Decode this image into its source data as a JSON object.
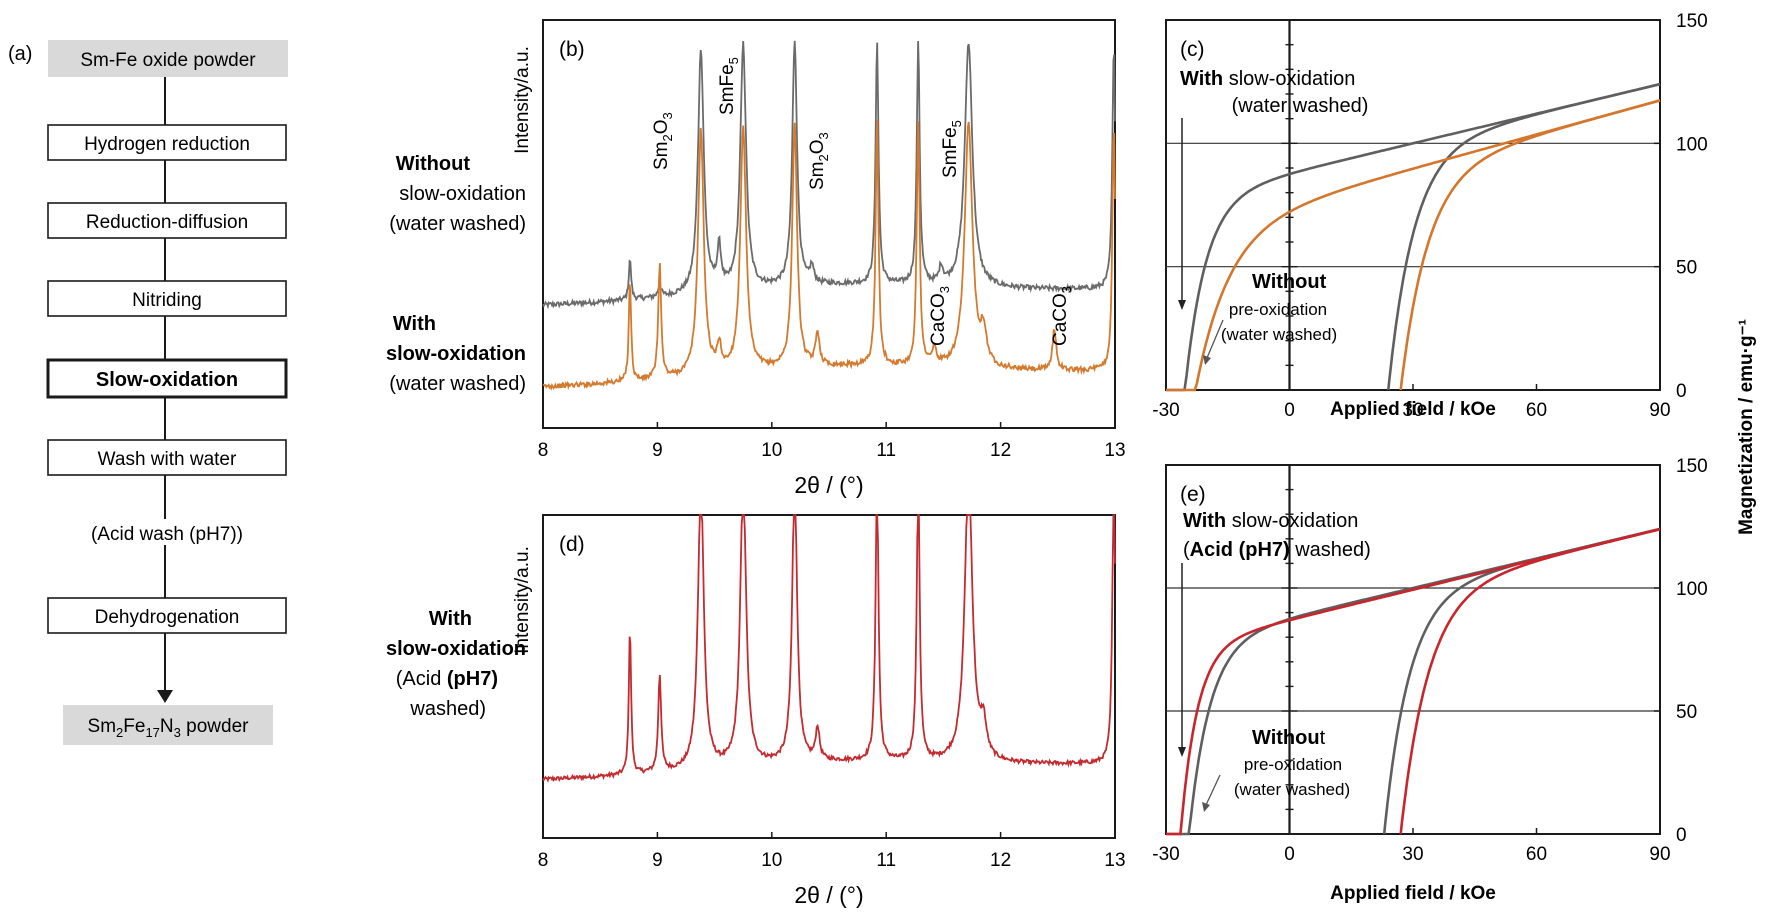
{
  "flowchart": {
    "panel_label": "(a)",
    "start": "Sm-Fe oxide powder",
    "steps": [
      "Hydrogen reduction",
      "Reduction-diffusion",
      "Nitriding",
      "Slow-oxidation",
      "Wash with water"
    ],
    "optional_step": "(Acid wash (pH7))",
    "final_step": "Dehydrogenation",
    "end_prefix": "Sm",
    "end_sub1": "2",
    "end_mid": "Fe",
    "end_sub2": "17",
    "end_mid2": "N",
    "end_sub3": "3",
    "end_suffix": " powder",
    "colors": {
      "terminal_fill": "#d9d9d9",
      "box_fill": "#ffffff",
      "stroke": "#1a1a1a"
    }
  },
  "chart_data": [
    {
      "panel": "(b)",
      "type": "line",
      "xlabel_theta": "2θ / (°)",
      "ylabel": "Intensity/a.u.",
      "xlim": [
        8,
        13
      ],
      "xticks": [
        "8",
        "9",
        "10",
        "11",
        "12",
        "13"
      ],
      "series": [
        {
          "label_lines": [
            [
              "Without",
              ""
            ],
            [
              "slow-oxidation",
              ""
            ],
            [
              "(water washed)",
              ""
            ]
          ],
          "label_bold": [
            true,
            false,
            false
          ],
          "color": "#6b6b6b",
          "baseline": 0.3,
          "tilt": 0.04,
          "peaks": [
            [
              8.76,
              0.1,
              0.012
            ],
            [
              9.02,
              0.03,
              0.015
            ],
            [
              9.38,
              0.6,
              0.03
            ],
            [
              9.54,
              0.1,
              0.02
            ],
            [
              9.75,
              0.6,
              0.03
            ],
            [
              10.2,
              0.6,
              0.025
            ],
            [
              10.35,
              0.04,
              0.02
            ],
            [
              10.92,
              0.6,
              0.015
            ],
            [
              11.28,
              0.6,
              0.015
            ],
            [
              11.48,
              0.04,
              0.02
            ],
            [
              11.72,
              0.6,
              0.04
            ],
            [
              12.99,
              0.6,
              0.015
            ]
          ]
        },
        {
          "color": "#d47a2e",
          "baseline": 0.1,
          "tilt": 0.04,
          "peaks": [
            [
              8.76,
              0.25,
              0.012
            ],
            [
              9.02,
              0.28,
              0.015
            ],
            [
              9.38,
              0.6,
              0.03
            ],
            [
              9.54,
              0.06,
              0.02
            ],
            [
              9.75,
              0.6,
              0.03
            ],
            [
              10.2,
              0.6,
              0.025
            ],
            [
              10.4,
              0.08,
              0.02
            ],
            [
              10.92,
              0.6,
              0.015
            ],
            [
              11.28,
              0.6,
              0.015
            ],
            [
              11.42,
              0.04,
              0.02
            ],
            [
              11.72,
              0.6,
              0.04
            ],
            [
              11.85,
              0.08,
              0.03
            ],
            [
              12.47,
              0.1,
              0.02
            ],
            [
              12.99,
              0.6,
              0.015
            ]
          ]
        }
      ],
      "annotations": [
        "Sm2O3",
        "SmFe5",
        "Sm2O3",
        "SmFe5",
        "CaCO3",
        "CaCO3"
      ]
    },
    {
      "panel": "(d)",
      "type": "line",
      "xlabel_theta": "2θ / (°)",
      "ylabel": "Intensity/a.u.",
      "xlim": [
        8,
        13
      ],
      "xticks": [
        "8",
        "9",
        "10",
        "11",
        "12",
        "13"
      ],
      "series": [
        {
          "color": "#c42b30",
          "baseline": 0.18,
          "tilt": 0.05,
          "peaks": [
            [
              8.76,
              0.45,
              0.012
            ],
            [
              9.02,
              0.3,
              0.015
            ],
            [
              9.38,
              0.9,
              0.03
            ],
            [
              9.75,
              0.9,
              0.03
            ],
            [
              10.2,
              0.9,
              0.025
            ],
            [
              10.4,
              0.1,
              0.02
            ],
            [
              10.92,
              0.9,
              0.015
            ],
            [
              11.28,
              0.9,
              0.015
            ],
            [
              11.72,
              0.9,
              0.04
            ],
            [
              11.85,
              0.1,
              0.03
            ],
            [
              12.99,
              0.9,
              0.015
            ]
          ]
        }
      ]
    },
    {
      "panel": "(c)",
      "type": "line",
      "xlabel": "Applied field / kOe",
      "ylabel": "Magnetization / emu·g⁻¹",
      "xlim": [
        -30,
        90
      ],
      "ylim": [
        0,
        150
      ],
      "xticks": [
        "-30",
        "0",
        "30",
        "60",
        "90"
      ],
      "yticks": [
        "0",
        "50",
        "100",
        "150"
      ],
      "hlines": [
        50,
        100
      ],
      "series": [
        {
          "color": "#5f5f5f",
          "Ms": 88,
          "slope": 0.4,
          "H0": -26,
          "w": 5,
          "upper_x": [
            -30,
            -27,
            -24,
            -21,
            -18,
            -14,
            -10,
            -5,
            0,
            10,
            20,
            30,
            40,
            50,
            60,
            70,
            80,
            90
          ],
          "rising_x": [
            24,
            26,
            28,
            30,
            32,
            35,
            38,
            42,
            46,
            50,
            60,
            70,
            80,
            90
          ],
          "rising_shift": 50
        },
        {
          "color": "#d4762c",
          "Ms": 76,
          "slope": 0.46,
          "H0": -24,
          "w": 8,
          "upper_x": [
            -30,
            -27,
            -24,
            -21,
            -18,
            -14,
            -10,
            -5,
            0,
            10,
            20,
            30,
            40,
            50,
            60,
            70,
            80,
            90
          ],
          "rising_x": [
            27,
            29,
            31,
            33,
            36,
            40,
            44,
            48,
            55,
            60,
            70,
            80,
            90
          ],
          "rising_shift": 53
        }
      ],
      "text": {
        "line1_bold": "With",
        "line1_rest": " slow-oxidation",
        "line2": "(water washed)",
        "line3_bold": "Without",
        "line4": "pre-oxidation",
        "line5": "(water washed)"
      }
    },
    {
      "panel": "(e)",
      "type": "line",
      "xlabel": "Applied field / kOe",
      "xlim": [
        -30,
        90
      ],
      "ylim": [
        0,
        150
      ],
      "xticks": [
        "-30",
        "0",
        "30",
        "60",
        "90"
      ],
      "yticks": [
        "0",
        "50",
        "100",
        "150"
      ],
      "hlines": [
        50,
        100
      ],
      "series": [
        {
          "color": "#5f5f5f",
          "Ms": 88,
          "slope": 0.4,
          "H0": -25,
          "w": 5,
          "rising_x": [
            23,
            25,
            27,
            29,
            31,
            34,
            37,
            41,
            45,
            50,
            60,
            70,
            80,
            90
          ],
          "rising_shift": 49
        },
        {
          "color": "#c8262c",
          "Ms": 87,
          "slope": 0.41,
          "H0": -27,
          "w": 4,
          "rising_x": [
            27,
            29,
            31,
            33,
            35,
            38,
            41,
            45,
            50,
            60,
            70,
            80,
            90
          ],
          "rising_shift": 54
        }
      ],
      "text": {
        "line1_bold": "With",
        "line1_rest": " slow-oxidation",
        "line2_open": "(",
        "line2_bold": "Acid (pH7)",
        "line2_rest": " washed)",
        "line3_bold": "Withou",
        "line3_rest": "t",
        "line4": "pre-oxidation",
        "line5": "(water washed)"
      }
    }
  ],
  "labels": {
    "b_without_1": "Without",
    "b_without_2": "slow-oxidation",
    "b_without_3": "(water washed)",
    "b_with_1": "With",
    "b_with_2": "slow-oxidation",
    "b_with_3": "(water washed)",
    "d_with_1": "With",
    "d_with_2": "slow-oxidation",
    "d_with_3a": "(Acid ",
    "d_with_3b": "(pH7)",
    "d_with_4": "washed)"
  }
}
